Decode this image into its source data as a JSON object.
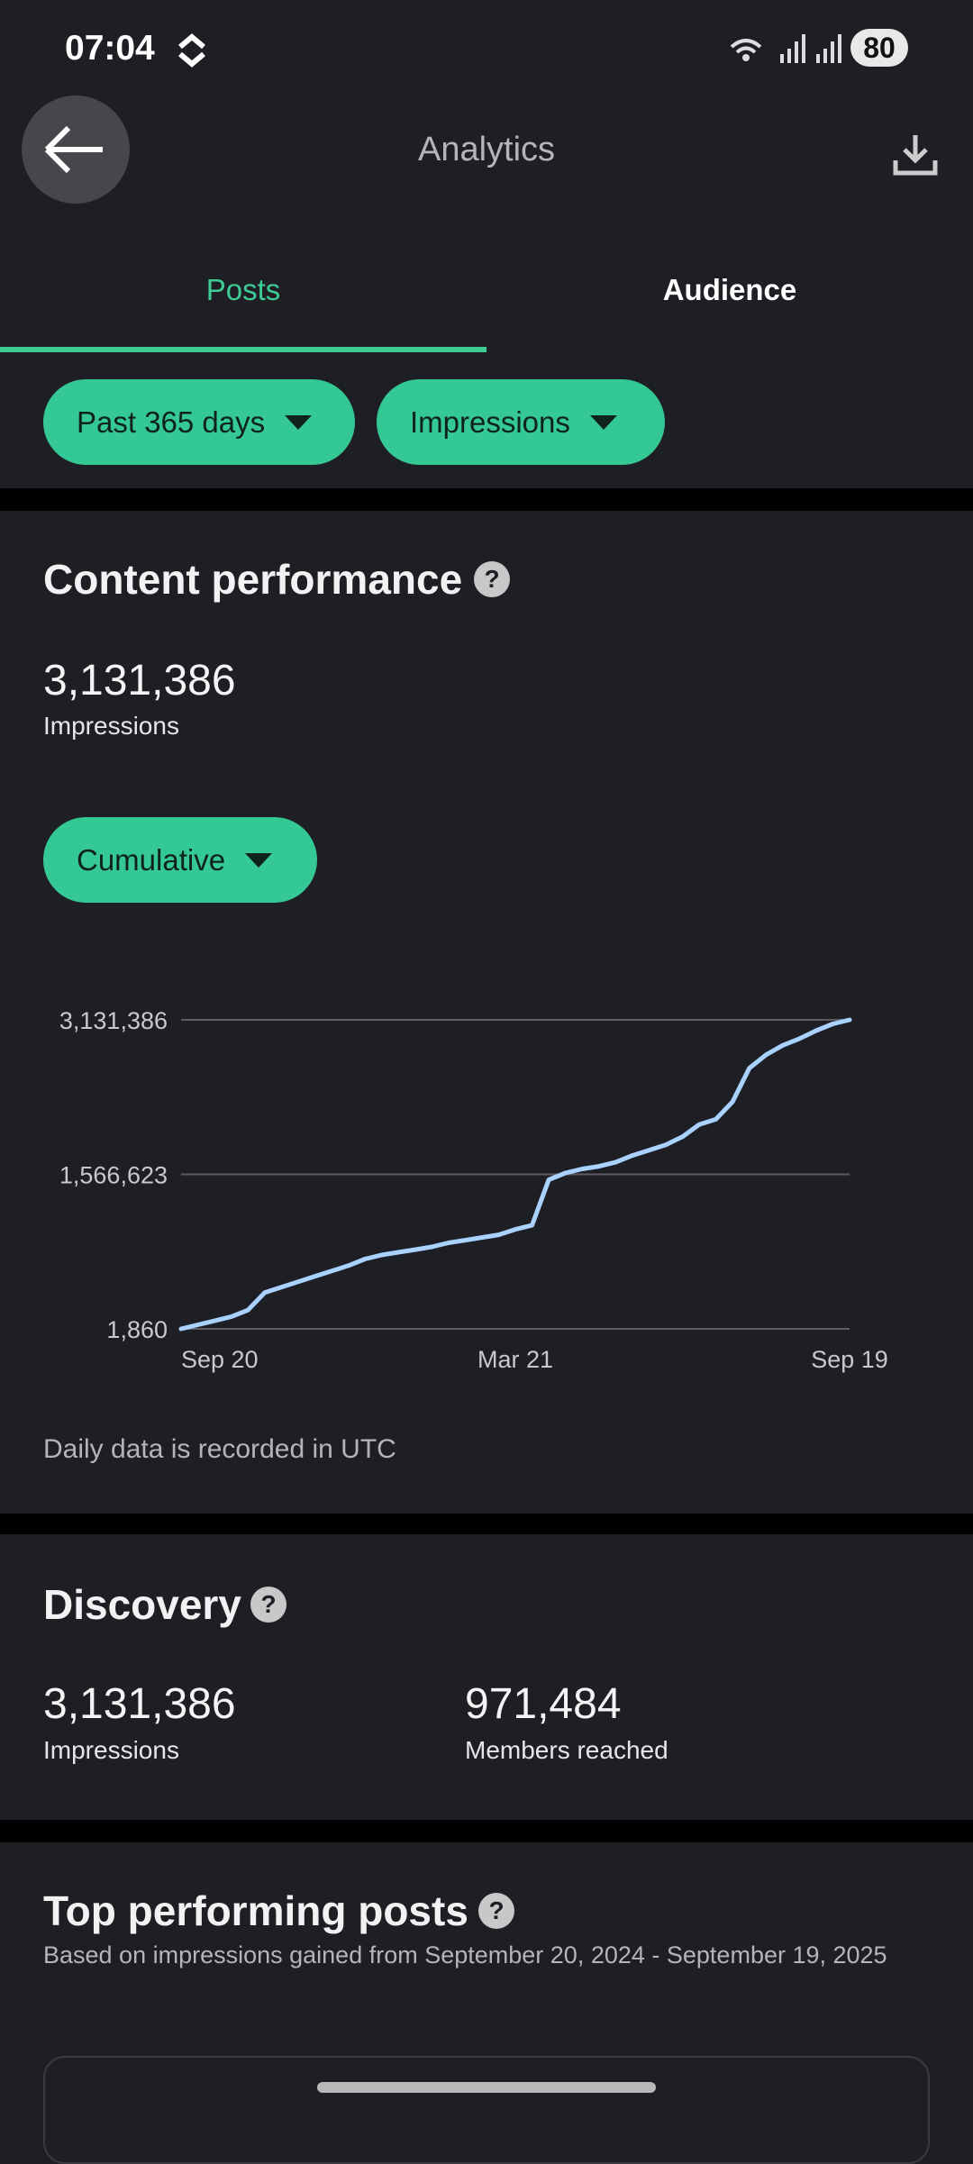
{
  "status_bar": {
    "time": "07:04",
    "battery": "80"
  },
  "header": {
    "title": "Analytics"
  },
  "tabs": [
    "Posts",
    "Audience"
  ],
  "filters": [
    "Past 365 days",
    "Impressions"
  ],
  "content_performance": {
    "title": "Content performance",
    "total": "3,131,386",
    "total_label": "Impressions",
    "mode": "Cumulative",
    "note": "Daily data is recorded in UTC"
  },
  "chart_data": {
    "type": "line",
    "categories": [
      "Sep 20",
      null,
      null,
      null,
      null,
      null,
      null,
      null,
      null,
      null,
      null,
      null,
      null,
      null,
      null,
      null,
      null,
      null,
      null,
      null,
      "Mar 21",
      null,
      null,
      null,
      null,
      null,
      null,
      null,
      null,
      null,
      null,
      null,
      null,
      null,
      null,
      null,
      null,
      null,
      null,
      null,
      "Sep 19"
    ],
    "values": [
      1860,
      42700,
      83500,
      124000,
      192000,
      369000,
      424000,
      478000,
      533000,
      587000,
      641000,
      709000,
      750000,
      777000,
      804000,
      832000,
      873000,
      900000,
      927000,
      954000,
      1009000,
      1050000,
      1512000,
      1580000,
      1621000,
      1648000,
      1689000,
      1757000,
      1811000,
      1866000,
      1947000,
      2070000,
      2124000,
      2301000,
      2641000,
      2777000,
      2873000,
      2941000,
      3022000,
      3090000,
      3131386
    ],
    "color": "#a9d2ff",
    "ylim": [
      1860,
      3131386
    ],
    "yticks": [
      {
        "value": 1860,
        "label": "1,860"
      },
      {
        "value": 1566623,
        "label": "1,566,623"
      },
      {
        "value": 3131386,
        "label": "3,131,386"
      }
    ],
    "grid": true
  },
  "discovery": {
    "title": "Discovery",
    "metrics": [
      {
        "value": "3,131,386",
        "label": "Impressions"
      },
      {
        "value": "971,484",
        "label": "Members reached"
      }
    ]
  },
  "top_posts": {
    "title": "Top performing posts",
    "subtitle": "Based on impressions gained from September 20, 2024 - September 19, 2025"
  }
}
